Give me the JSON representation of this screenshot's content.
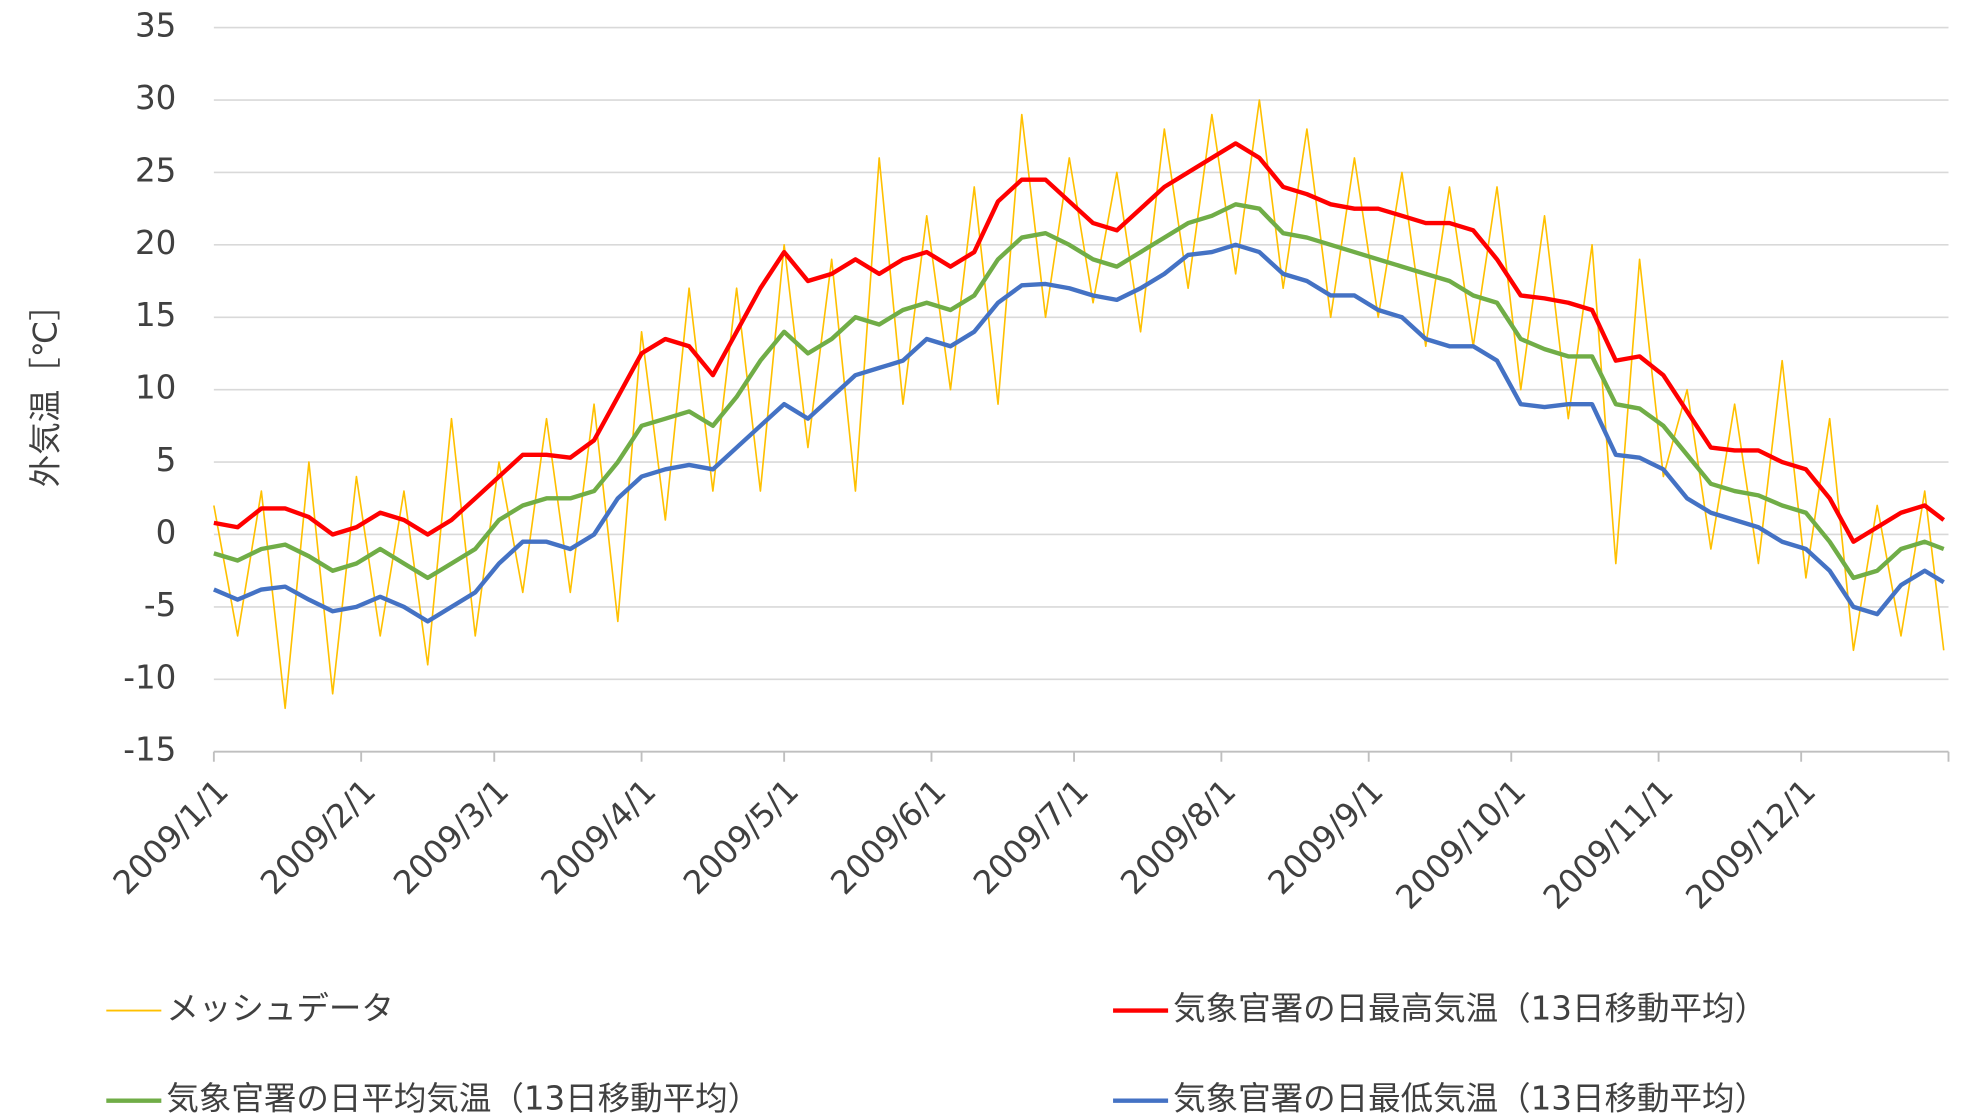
{
  "chart_data": {
    "type": "line",
    "y_label": "外気温［℃］",
    "x": [
      "2009-01-01",
      "2009-01-06",
      "2009-01-11",
      "2009-01-16",
      "2009-01-21",
      "2009-01-26",
      "2009-01-31",
      "2009-02-05",
      "2009-02-10",
      "2009-02-15",
      "2009-02-20",
      "2009-02-25",
      "2009-03-02",
      "2009-03-07",
      "2009-03-12",
      "2009-03-17",
      "2009-03-22",
      "2009-03-27",
      "2009-04-01",
      "2009-04-06",
      "2009-04-11",
      "2009-04-16",
      "2009-04-21",
      "2009-04-26",
      "2009-05-01",
      "2009-05-06",
      "2009-05-11",
      "2009-05-16",
      "2009-05-21",
      "2009-05-26",
      "2009-05-31",
      "2009-06-05",
      "2009-06-10",
      "2009-06-15",
      "2009-06-20",
      "2009-06-25",
      "2009-06-30",
      "2009-07-05",
      "2009-07-10",
      "2009-07-15",
      "2009-07-20",
      "2009-07-25",
      "2009-07-30",
      "2009-08-04",
      "2009-08-09",
      "2009-08-14",
      "2009-08-19",
      "2009-08-24",
      "2009-08-29",
      "2009-09-03",
      "2009-09-08",
      "2009-09-13",
      "2009-09-18",
      "2009-09-23",
      "2009-09-28",
      "2009-10-03",
      "2009-10-08",
      "2009-10-13",
      "2009-10-18",
      "2009-10-23",
      "2009-10-28",
      "2009-11-02",
      "2009-11-07",
      "2009-11-12",
      "2009-11-17",
      "2009-11-22",
      "2009-11-27",
      "2009-12-02",
      "2009-12-07",
      "2009-12-12",
      "2009-12-17",
      "2009-12-22",
      "2009-12-27",
      "2009-12-31"
    ],
    "series": [
      {
        "name": "メッシュデータ",
        "color": "#ffc000",
        "width": 1.3,
        "values": [
          2,
          -7,
          3,
          -12,
          5,
          -11,
          4,
          -7,
          3,
          -9,
          8,
          -7,
          5,
          -4,
          8,
          -4,
          9,
          -6,
          14,
          1,
          17,
          3,
          17,
          3,
          20,
          6,
          19,
          3,
          26,
          9,
          22,
          10,
          24,
          9,
          29,
          15,
          26,
          16,
          25,
          14,
          28,
          17,
          29,
          18,
          30,
          17,
          28,
          15,
          26,
          15,
          25,
          13,
          24,
          13,
          24,
          10,
          22,
          8,
          20,
          -2,
          19,
          4,
          10,
          -1,
          9,
          -2,
          12,
          -3,
          8,
          -8,
          2,
          -7,
          3,
          -8
        ]
      },
      {
        "name": "気象官署の日最高気温（13日移動平均）",
        "color": "#ff0000",
        "width": 3.5,
        "values": [
          0.8,
          0.5,
          1.8,
          1.8,
          1.2,
          0,
          0.5,
          1.5,
          1,
          0,
          1,
          2.5,
          4,
          5.5,
          5.5,
          5.3,
          6.5,
          9.5,
          12.5,
          13.5,
          13,
          11,
          14,
          17,
          19.5,
          17.5,
          18,
          19,
          18,
          19,
          19.5,
          18.5,
          19.5,
          23,
          24.5,
          24.5,
          23,
          21.5,
          21,
          22.5,
          24,
          25,
          26,
          27,
          26,
          24,
          23.5,
          22.8,
          22.5,
          22.5,
          22,
          21.5,
          21.5,
          21,
          19,
          16.5,
          16.3,
          16,
          15.5,
          12,
          12.3,
          11,
          8.5,
          6,
          5.8,
          5.8,
          5,
          4.5,
          2.5,
          -0.5,
          0.5,
          1.5,
          2,
          1
        ]
      },
      {
        "name": "気象官署の日平均気温（13日移動平均）",
        "color": "#70ad47",
        "width": 3.5,
        "values": [
          -1.3,
          -1.8,
          -1,
          -0.7,
          -1.5,
          -2.5,
          -2,
          -1,
          -2,
          -3,
          -2,
          -1,
          1,
          2,
          2.5,
          2.5,
          3,
          5,
          7.5,
          8,
          8.5,
          7.5,
          9.5,
          12,
          14,
          12.5,
          13.5,
          15,
          14.5,
          15.5,
          16,
          15.5,
          16.5,
          19,
          20.5,
          20.8,
          20,
          19,
          18.5,
          19.5,
          20.5,
          21.5,
          22,
          22.8,
          22.5,
          20.8,
          20.5,
          20,
          19.5,
          19,
          18.5,
          18,
          17.5,
          16.5,
          16,
          13.5,
          12.8,
          12.3,
          12.3,
          9,
          8.7,
          7.5,
          5.5,
          3.5,
          3,
          2.7,
          2,
          1.5,
          -0.5,
          -3,
          -2.5,
          -1,
          -0.5,
          -1
        ]
      },
      {
        "name": "気象官署の日最低気温（13日移動平均）",
        "color": "#4472c4",
        "width": 3.5,
        "values": [
          -3.8,
          -4.5,
          -3.8,
          -3.6,
          -4.5,
          -5.3,
          -5,
          -4.3,
          -5,
          -6,
          -5,
          -4,
          -2,
          -0.5,
          -0.5,
          -1,
          0,
          2.5,
          4,
          4.5,
          4.8,
          4.5,
          6,
          7.5,
          9,
          8,
          9.5,
          11,
          11.5,
          12,
          13.5,
          13,
          14,
          16,
          17.2,
          17.3,
          17,
          16.5,
          16.2,
          17,
          18,
          19.3,
          19.5,
          20,
          19.5,
          18,
          17.5,
          16.5,
          16.5,
          15.5,
          15,
          13.5,
          13,
          13,
          12,
          9,
          8.8,
          9,
          9,
          5.5,
          5.3,
          4.5,
          2.5,
          1.5,
          1,
          0.5,
          -0.5,
          -1,
          -2.5,
          -5,
          -5.5,
          -3.5,
          -2.5,
          -3.3
        ]
      }
    ],
    "xlim": [
      "2009-01-01",
      "2010-01-01"
    ],
    "xticks": [
      {
        "value": "2009-01-01",
        "label": "2009/1/1"
      },
      {
        "value": "2009-02-01",
        "label": "2009/2/1"
      },
      {
        "value": "2009-03-01",
        "label": "2009/3/1"
      },
      {
        "value": "2009-04-01",
        "label": "2009/4/1"
      },
      {
        "value": "2009-05-01",
        "label": "2009/5/1"
      },
      {
        "value": "2009-06-01",
        "label": "2009/6/1"
      },
      {
        "value": "2009-07-01",
        "label": "2009/7/1"
      },
      {
        "value": "2009-08-01",
        "label": "2009/8/1"
      },
      {
        "value": "2009-09-01",
        "label": "2009/9/1"
      },
      {
        "value": "2009-10-01",
        "label": "2009/10/1"
      },
      {
        "value": "2009-11-01",
        "label": "2009/11/1"
      },
      {
        "value": "2009-12-01",
        "label": "2009/12/1"
      }
    ],
    "ylim": [
      -15,
      35
    ],
    "yticks": [
      -15,
      -10,
      -5,
      0,
      5,
      10,
      15,
      20,
      25,
      30,
      35
    ],
    "grid": true,
    "legend": "bottom"
  }
}
